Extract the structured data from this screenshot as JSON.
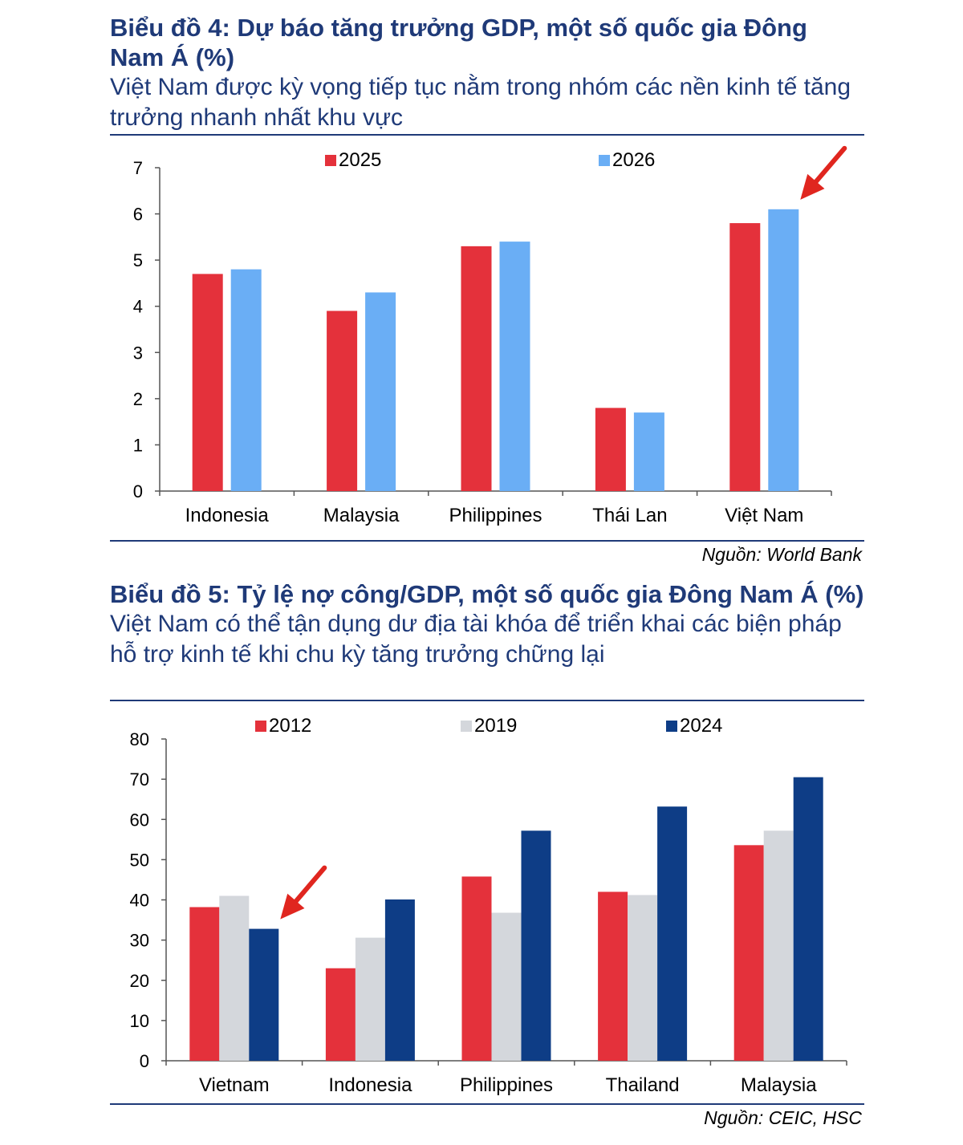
{
  "charts": [
    {
      "title": "Biểu đồ 4: Dự báo tăng trưởng GDP, một số quốc gia Đông Nam Á (%)",
      "subtitle": "Việt Nam được kỳ vọng tiếp tục nằm trong nhóm các nền kinh tế tăng trưởng nhanh nhất khu vực",
      "source": "Nguồn: World Bank"
    },
    {
      "title": "Biểu đồ 5: Tỷ lệ nợ công/GDP, một số quốc gia Đông Nam Á (%)",
      "subtitle": "Việt Nam có thể tận dụng dư địa tài khóa để triển khai các biện pháp hỗ trợ kinh tế khi chu kỳ tăng trưởng chững lại",
      "source": "Nguồn: CEIC, HSC"
    }
  ],
  "chart_data": [
    {
      "type": "bar",
      "title": "Biểu đồ 4: Dự báo tăng trưởng GDP, một số quốc gia Đông Nam Á (%)",
      "categories": [
        "Indonesia",
        "Malaysia",
        "Philippines",
        "Thái Lan",
        "Việt Nam"
      ],
      "series": [
        {
          "name": "2025",
          "color": "#e4313b",
          "values": [
            4.7,
            3.9,
            5.3,
            1.8,
            5.8
          ]
        },
        {
          "name": "2026",
          "color": "#6aaef5",
          "values": [
            4.8,
            4.3,
            5.4,
            1.7,
            6.1
          ]
        }
      ],
      "ylim": [
        0,
        7
      ],
      "yticks": [
        0,
        1,
        2,
        3,
        4,
        5,
        6,
        7
      ],
      "grid": false,
      "legend": "top",
      "annotation": {
        "type": "red-arrow",
        "target_category": "Việt Nam",
        "target_series": "2026"
      }
    },
    {
      "type": "bar",
      "title": "Biểu đồ 5: Tỷ lệ nợ công/GDP, một số quốc gia Đông Nam Á (%)",
      "categories": [
        "Vietnam",
        "Indonesia",
        "Philippines",
        "Thailand",
        "Malaysia"
      ],
      "series": [
        {
          "name": "2012",
          "color": "#e4313b",
          "values": [
            38.2,
            23.0,
            45.8,
            42.0,
            53.6
          ]
        },
        {
          "name": "2019",
          "color": "#d4d7dc",
          "values": [
            41.0,
            30.6,
            36.8,
            41.2,
            57.2
          ]
        },
        {
          "name": "2024",
          "color": "#0e3d86",
          "values": [
            32.8,
            40.1,
            57.2,
            63.2,
            70.5
          ]
        }
      ],
      "ylim": [
        0,
        80
      ],
      "yticks": [
        0,
        10,
        20,
        30,
        40,
        50,
        60,
        70,
        80
      ],
      "grid": false,
      "legend": "top",
      "annotation": {
        "type": "red-arrow",
        "target_category": "Vietnam",
        "target_series": "2024"
      }
    }
  ]
}
